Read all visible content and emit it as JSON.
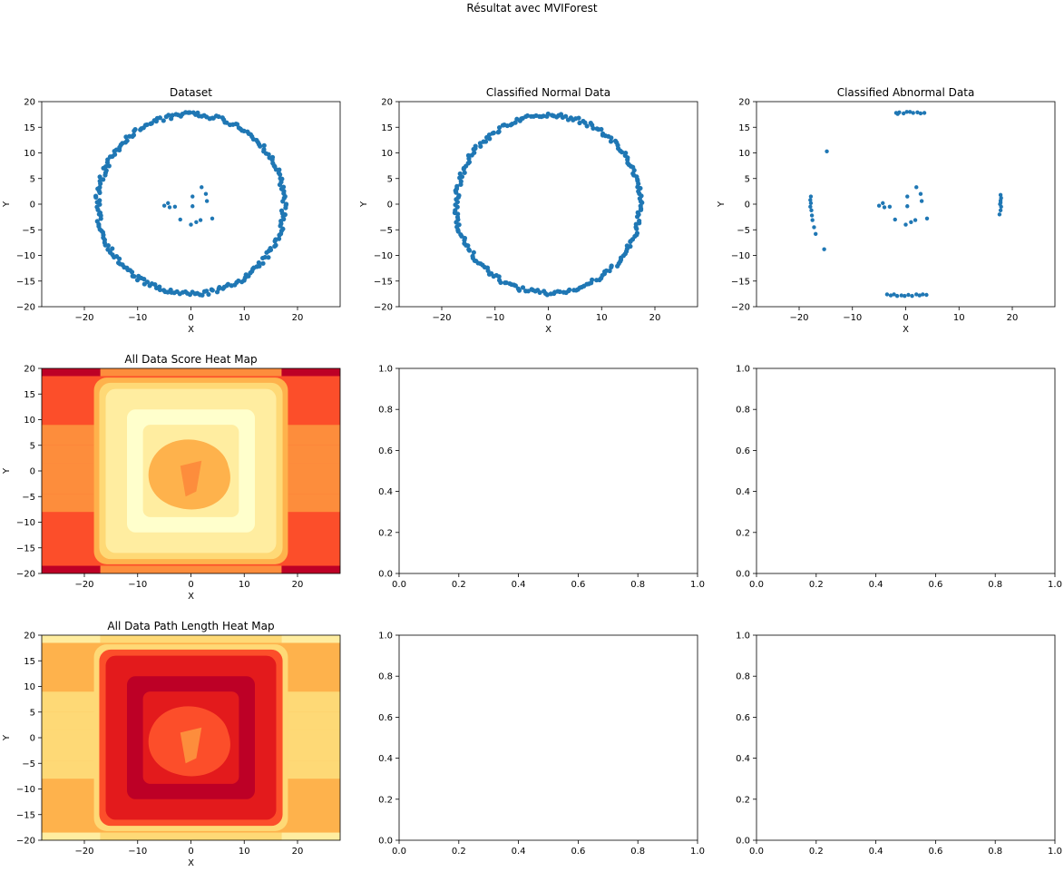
{
  "figure": {
    "suptitle": "Résultat avec MVIForest"
  },
  "chart_data": [
    {
      "type": "scatter",
      "title": "Dataset",
      "xlabel": "X",
      "ylabel": "Y",
      "xlim": [
        -28,
        28
      ],
      "ylim": [
        -20,
        20
      ],
      "xticks": [
        -20,
        -10,
        0,
        10,
        20
      ],
      "yticks": [
        -20,
        -15,
        -10,
        -5,
        0,
        5,
        10,
        15,
        20
      ],
      "color": "#1f77b4",
      "ring": {
        "radius": 17.5,
        "count": 240
      },
      "points": [
        [
          -5,
          -0.3
        ],
        [
          -4.3,
          0.2
        ],
        [
          -4,
          -0.6
        ],
        [
          -3,
          -0.5
        ],
        [
          -2,
          -3
        ],
        [
          0,
          -4
        ],
        [
          0.3,
          1.5
        ],
        [
          0.3,
          -0.4
        ],
        [
          1,
          -3.5
        ],
        [
          1.8,
          -3.1
        ],
        [
          2,
          3.3
        ],
        [
          2.8,
          2
        ],
        [
          3,
          0.6
        ],
        [
          4,
          -2.8
        ]
      ]
    },
    {
      "type": "scatter",
      "title": "Classified Normal Data",
      "xlabel": "X",
      "ylabel": "Y",
      "xlim": [
        -28,
        28
      ],
      "ylim": [
        -20,
        20
      ],
      "xticks": [
        -20,
        -10,
        0,
        10,
        20
      ],
      "yticks": [
        -20,
        -15,
        -10,
        -5,
        0,
        5,
        10,
        15,
        20
      ],
      "color": "#1f77b4",
      "ring": {
        "radius": 17.3,
        "count": 230
      },
      "points": []
    },
    {
      "type": "scatter",
      "title": "Classified Abnormal Data",
      "xlabel": "X",
      "ylabel": "Y",
      "xlim": [
        -28,
        28
      ],
      "ylim": [
        -20,
        20
      ],
      "xticks": [
        -20,
        -10,
        0,
        10,
        20
      ],
      "yticks": [
        -20,
        -15,
        -10,
        -5,
        0,
        5,
        10,
        15,
        20
      ],
      "color": "#1f77b4",
      "points": [
        [
          -14.8,
          10.3
        ],
        [
          -15.3,
          -8.8
        ],
        [
          -1.8,
          17.8
        ],
        [
          -1.2,
          17.9
        ],
        [
          -0.4,
          17.7
        ],
        [
          0.2,
          18
        ],
        [
          0.8,
          18
        ],
        [
          1.4,
          17.8
        ],
        [
          2.2,
          17.9
        ],
        [
          2.8,
          17.7
        ],
        [
          3.5,
          17.8
        ],
        [
          -1.5,
          17.6
        ],
        [
          -3.5,
          -17.6
        ],
        [
          -2.8,
          -17.8
        ],
        [
          -2.2,
          -17.6
        ],
        [
          -1.6,
          -17.9
        ],
        [
          -0.8,
          -17.8
        ],
        [
          -0.2,
          -17.9
        ],
        [
          0.5,
          -17.7
        ],
        [
          1.2,
          -17.9
        ],
        [
          2,
          -17.6
        ],
        [
          2.6,
          -17.8
        ],
        [
          3.2,
          -17.6
        ],
        [
          3.9,
          -17.7
        ],
        [
          -17.8,
          1.5
        ],
        [
          -17.9,
          0.8
        ],
        [
          -17.8,
          0.2
        ],
        [
          -17.9,
          -0.5
        ],
        [
          -17.7,
          -1.2
        ],
        [
          -17.6,
          -2.2
        ],
        [
          -17.5,
          -3.1
        ],
        [
          -17.2,
          -4.5
        ],
        [
          -16.9,
          -5.8
        ],
        [
          17.8,
          1.8
        ],
        [
          17.9,
          1.2
        ],
        [
          17.8,
          0.7
        ],
        [
          17.7,
          0
        ],
        [
          17.9,
          -0.5
        ],
        [
          17.8,
          -1.2
        ],
        [
          17.6,
          -2
        ],
        [
          17.8,
          0.3
        ],
        [
          -5,
          -0.3
        ],
        [
          -4.3,
          0.2
        ],
        [
          -4,
          -0.6
        ],
        [
          -3,
          -0.5
        ],
        [
          -2,
          -3
        ],
        [
          0,
          -4
        ],
        [
          0.3,
          1.5
        ],
        [
          0.3,
          -0.4
        ],
        [
          1,
          -3.5
        ],
        [
          1.8,
          -3.1
        ],
        [
          2,
          3.3
        ],
        [
          2.8,
          2
        ],
        [
          3,
          0.6
        ],
        [
          4,
          -2.8
        ]
      ]
    },
    {
      "type": "heatmap",
      "title": "All Data Score Heat Map",
      "xlabel": "X",
      "ylabel": "Y",
      "xlim": [
        -28,
        28
      ],
      "ylim": [
        -20,
        20
      ],
      "xticks": [
        -20,
        -10,
        0,
        10,
        20
      ],
      "yticks": [
        -20,
        -15,
        -10,
        -5,
        0,
        5,
        10,
        15,
        20
      ],
      "colormap": "YlOrRd",
      "palette": [
        "#ffffcc",
        "#ffeda0",
        "#fed976",
        "#feb24c",
        "#fd8d3c",
        "#fc4e2a",
        "#e31a1c",
        "#bd0026",
        "#800026"
      ],
      "levels": {
        "outer_corner": 7,
        "outer_edge": 5,
        "outer_band": 4,
        "inside": 1,
        "center": 3
      }
    },
    {
      "type": "empty",
      "title": "",
      "xlim": [
        0,
        1
      ],
      "ylim": [
        0,
        1
      ],
      "xticks": [
        "0.0",
        "0.2",
        "0.4",
        "0.6",
        "0.8",
        "1.0"
      ],
      "yticks": [
        "0.0",
        "0.2",
        "0.4",
        "0.6",
        "0.8",
        "1.0"
      ]
    },
    {
      "type": "empty",
      "title": "",
      "xlim": [
        0,
        1
      ],
      "ylim": [
        0,
        1
      ],
      "xticks": [
        "0.0",
        "0.2",
        "0.4",
        "0.6",
        "0.8",
        "1.0"
      ],
      "yticks": [
        "0.0",
        "0.2",
        "0.4",
        "0.6",
        "0.8",
        "1.0"
      ]
    },
    {
      "type": "heatmap",
      "title": "All Data Path Length Heat Map",
      "xlabel": "X",
      "ylabel": "Y",
      "xlim": [
        -28,
        28
      ],
      "ylim": [
        -20,
        20
      ],
      "xticks": [
        -20,
        -10,
        0,
        10,
        20
      ],
      "yticks": [
        -20,
        -15,
        -10,
        -5,
        0,
        5,
        10,
        15,
        20
      ],
      "colormap": "YlOrRd",
      "palette": [
        "#ffffcc",
        "#ffeda0",
        "#fed976",
        "#feb24c",
        "#fd8d3c",
        "#fc4e2a",
        "#e31a1c",
        "#bd0026",
        "#800026"
      ],
      "levels": {
        "outer_corner": 1,
        "outer_edge": 3,
        "outer_band": 2,
        "inside": 6,
        "center": 5
      }
    },
    {
      "type": "empty",
      "title": "",
      "xlim": [
        0,
        1
      ],
      "ylim": [
        0,
        1
      ],
      "xticks": [
        "0.0",
        "0.2",
        "0.4",
        "0.6",
        "0.8",
        "1.0"
      ],
      "yticks": [
        "0.0",
        "0.2",
        "0.4",
        "0.6",
        "0.8",
        "1.0"
      ]
    },
    {
      "type": "empty",
      "title": "",
      "xlim": [
        0,
        1
      ],
      "ylim": [
        0,
        1
      ],
      "xticks": [
        "0.0",
        "0.2",
        "0.4",
        "0.6",
        "0.8",
        "1.0"
      ],
      "yticks": [
        "0.0",
        "0.2",
        "0.4",
        "0.6",
        "0.8",
        "1.0"
      ]
    }
  ]
}
